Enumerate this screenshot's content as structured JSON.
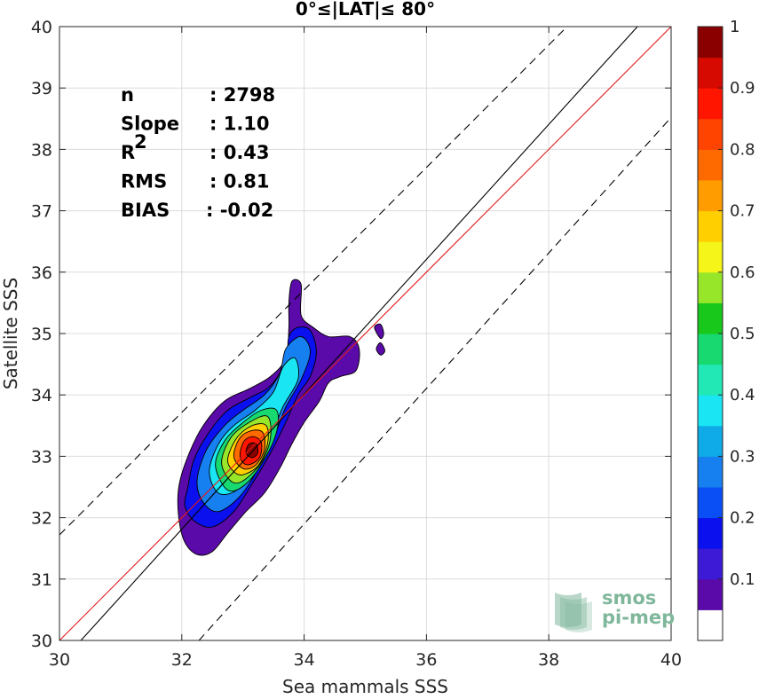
{
  "chart_data": {
    "type": "heatmap",
    "subtype": "filled density contour (normalized 0–1) with reference lines",
    "title": "0°≤|LAT|≤ 80°",
    "xlabel": "Sea mammals SSS",
    "ylabel": "Satellite SSS",
    "xlim": [
      30,
      40
    ],
    "ylim": [
      30,
      40
    ],
    "xticks": [
      "30",
      "32",
      "34",
      "36",
      "38",
      "40"
    ],
    "yticks": [
      "30",
      "31",
      "32",
      "33",
      "34",
      "35",
      "36",
      "37",
      "38",
      "39",
      "40"
    ],
    "grid": true,
    "stats": [
      {
        "label": "n",
        "value": ": 2798"
      },
      {
        "label": "Slope",
        "value": ": 1.10"
      },
      {
        "label": "R",
        "sup": "2",
        "value": ": 0.43"
      },
      {
        "label": "RMS",
        "value": ": 0.81"
      },
      {
        "label": "BIAS",
        "value": ": -0.02"
      }
    ],
    "lines": [
      {
        "name": "regression",
        "color": "#000000",
        "style": "solid",
        "slope": 1.1,
        "points": [
          [
            30.35,
            30
          ],
          [
            39.45,
            40
          ]
        ]
      },
      {
        "name": "one-to-one",
        "color": "#e31a1c",
        "style": "solid",
        "points": [
          [
            30,
            30
          ],
          [
            40,
            40
          ]
        ]
      },
      {
        "name": "upper-dashed",
        "color": "#000000",
        "style": "dashed",
        "points": [
          [
            30,
            31.72
          ],
          [
            38.3,
            40
          ]
        ]
      },
      {
        "name": "lower-dashed",
        "color": "#000000",
        "style": "dashed",
        "points": [
          [
            32.28,
            30
          ],
          [
            40,
            38.52
          ]
        ]
      }
    ],
    "density_peak": {
      "x": 33.15,
      "y": 33.1,
      "value": 1.0
    },
    "contour_levels": [
      {
        "level": 0.05,
        "poly": [
          [
            31.95,
            32.5
          ],
          [
            32.1,
            33.0
          ],
          [
            32.35,
            33.5
          ],
          [
            32.7,
            33.9
          ],
          [
            33.1,
            34.1
          ],
          [
            33.45,
            34.3
          ],
          [
            33.7,
            34.6
          ],
          [
            33.75,
            35.1
          ],
          [
            33.75,
            35.5
          ],
          [
            33.8,
            35.85
          ],
          [
            33.95,
            35.8
          ],
          [
            33.95,
            35.3
          ],
          [
            34.15,
            35.1
          ],
          [
            34.4,
            34.95
          ],
          [
            34.75,
            34.95
          ],
          [
            34.9,
            34.75
          ],
          [
            34.85,
            34.4
          ],
          [
            34.6,
            34.3
          ],
          [
            34.4,
            34.2
          ],
          [
            34.25,
            33.9
          ],
          [
            34.0,
            33.55
          ],
          [
            33.8,
            33.2
          ],
          [
            33.6,
            32.8
          ],
          [
            33.35,
            32.4
          ],
          [
            33.05,
            32.1
          ],
          [
            32.75,
            31.75
          ],
          [
            32.5,
            31.45
          ],
          [
            32.25,
            31.4
          ],
          [
            32.05,
            31.6
          ],
          [
            31.95,
            32.0
          ]
        ]
      },
      {
        "level": 0.15,
        "poly": [
          [
            32.1,
            32.5
          ],
          [
            32.2,
            32.95
          ],
          [
            32.45,
            33.4
          ],
          [
            32.75,
            33.75
          ],
          [
            33.1,
            33.95
          ],
          [
            33.45,
            34.15
          ],
          [
            33.7,
            34.55
          ],
          [
            33.75,
            34.95
          ],
          [
            33.9,
            35.1
          ],
          [
            34.1,
            35.05
          ],
          [
            34.2,
            34.7
          ],
          [
            34.1,
            34.3
          ],
          [
            33.9,
            34.0
          ],
          [
            33.7,
            33.55
          ],
          [
            33.45,
            33.05
          ],
          [
            33.15,
            32.55
          ],
          [
            32.85,
            32.1
          ],
          [
            32.5,
            31.85
          ],
          [
            32.2,
            31.95
          ],
          [
            32.05,
            32.2
          ]
        ]
      },
      {
        "level": 0.25,
        "poly": [
          [
            32.25,
            32.6
          ],
          [
            32.4,
            33.1
          ],
          [
            32.7,
            33.5
          ],
          [
            33.0,
            33.75
          ],
          [
            33.35,
            34.0
          ],
          [
            33.6,
            34.35
          ],
          [
            33.7,
            34.75
          ],
          [
            33.95,
            34.95
          ],
          [
            34.1,
            34.7
          ],
          [
            33.95,
            34.25
          ],
          [
            33.7,
            33.8
          ],
          [
            33.5,
            33.3
          ],
          [
            33.25,
            32.8
          ],
          [
            32.95,
            32.35
          ],
          [
            32.6,
            32.1
          ],
          [
            32.35,
            32.25
          ]
        ]
      },
      {
        "level": 0.35,
        "poly": [
          [
            32.45,
            32.75
          ],
          [
            32.6,
            33.2
          ],
          [
            32.85,
            33.5
          ],
          [
            33.2,
            33.75
          ],
          [
            33.5,
            34.05
          ],
          [
            33.65,
            34.45
          ],
          [
            33.85,
            34.6
          ],
          [
            33.9,
            34.25
          ],
          [
            33.65,
            33.8
          ],
          [
            33.45,
            33.3
          ],
          [
            33.2,
            32.8
          ],
          [
            32.9,
            32.45
          ],
          [
            32.6,
            32.4
          ]
        ]
      },
      {
        "level": 0.45,
        "poly": [
          [
            32.55,
            32.85
          ],
          [
            32.7,
            33.25
          ],
          [
            33.0,
            33.55
          ],
          [
            33.3,
            33.75
          ],
          [
            33.55,
            33.75
          ],
          [
            33.55,
            33.4
          ],
          [
            33.35,
            32.95
          ],
          [
            33.05,
            32.55
          ],
          [
            32.75,
            32.45
          ]
        ]
      },
      {
        "level": 0.55,
        "poly": [
          [
            32.65,
            32.9
          ],
          [
            32.8,
            33.3
          ],
          [
            33.1,
            33.55
          ],
          [
            33.4,
            33.65
          ],
          [
            33.45,
            33.3
          ],
          [
            33.3,
            32.9
          ],
          [
            33.0,
            32.6
          ],
          [
            32.8,
            32.6
          ]
        ]
      },
      {
        "level": 0.65,
        "poly": [
          [
            32.75,
            32.95
          ],
          [
            32.9,
            33.3
          ],
          [
            33.15,
            33.5
          ],
          [
            33.38,
            33.5
          ],
          [
            33.4,
            33.2
          ],
          [
            33.25,
            32.85
          ],
          [
            33.0,
            32.7
          ],
          [
            32.85,
            32.75
          ]
        ]
      },
      {
        "level": 0.75,
        "poly": [
          [
            32.85,
            33.0
          ],
          [
            32.95,
            33.3
          ],
          [
            33.15,
            33.42
          ],
          [
            33.33,
            33.38
          ],
          [
            33.35,
            33.1
          ],
          [
            33.2,
            32.85
          ],
          [
            33.0,
            32.8
          ]
        ]
      },
      {
        "level": 0.85,
        "poly": [
          [
            32.95,
            33.02
          ],
          [
            33.02,
            33.25
          ],
          [
            33.18,
            33.32
          ],
          [
            33.3,
            33.22
          ],
          [
            33.28,
            33.0
          ],
          [
            33.15,
            32.88
          ],
          [
            33.02,
            32.88
          ]
        ]
      },
      {
        "level": 0.95,
        "poly": [
          [
            33.05,
            33.05
          ],
          [
            33.1,
            33.2
          ],
          [
            33.22,
            33.2
          ],
          [
            33.24,
            33.05
          ],
          [
            33.15,
            32.98
          ]
        ]
      }
    ],
    "islands": [
      {
        "level": 0.05,
        "poly": [
          [
            35.15,
            35.1
          ],
          [
            35.25,
            35.15
          ],
          [
            35.3,
            35.0
          ],
          [
            35.25,
            34.92
          ]
        ]
      },
      {
        "level": 0.05,
        "poly": [
          [
            35.25,
            34.85
          ],
          [
            35.32,
            34.72
          ],
          [
            35.25,
            34.65
          ],
          [
            35.18,
            34.75
          ]
        ]
      }
    ],
    "colorbar": {
      "ticks": [
        "0.1",
        "0.2",
        "0.3",
        "0.4",
        "0.5",
        "0.6",
        "0.7",
        "0.8",
        "0.9",
        "1"
      ],
      "bands": [
        {
          "from": 0.0,
          "to": 0.05,
          "color": "#ffffff"
        },
        {
          "from": 0.05,
          "to": 0.1,
          "color": "#5a0aa8"
        },
        {
          "from": 0.1,
          "to": 0.15,
          "color": "#3c1ad6"
        },
        {
          "from": 0.15,
          "to": 0.2,
          "color": "#0b10ee"
        },
        {
          "from": 0.2,
          "to": 0.25,
          "color": "#0a4ff5"
        },
        {
          "from": 0.25,
          "to": 0.3,
          "color": "#1780f0"
        },
        {
          "from": 0.3,
          "to": 0.35,
          "color": "#0faae8"
        },
        {
          "from": 0.35,
          "to": 0.4,
          "color": "#19e6f2"
        },
        {
          "from": 0.4,
          "to": 0.45,
          "color": "#21e8b4"
        },
        {
          "from": 0.45,
          "to": 0.5,
          "color": "#18d870"
        },
        {
          "from": 0.5,
          "to": 0.55,
          "color": "#18c81a"
        },
        {
          "from": 0.55,
          "to": 0.6,
          "color": "#98e62a"
        },
        {
          "from": 0.6,
          "to": 0.65,
          "color": "#f5f51a"
        },
        {
          "from": 0.65,
          "to": 0.7,
          "color": "#ffcf00"
        },
        {
          "from": 0.7,
          "to": 0.75,
          "color": "#ff9d00"
        },
        {
          "from": 0.75,
          "to": 0.8,
          "color": "#ff6a00"
        },
        {
          "from": 0.8,
          "to": 0.85,
          "color": "#ff4400"
        },
        {
          "from": 0.85,
          "to": 0.9,
          "color": "#ff1500"
        },
        {
          "from": 0.9,
          "to": 0.95,
          "color": "#d60a00"
        },
        {
          "from": 0.95,
          "to": 1.0,
          "color": "#8a0000"
        }
      ]
    }
  },
  "logo": {
    "line1": "smos",
    "line2": "pi-mep",
    "color": "#7fb79b"
  }
}
